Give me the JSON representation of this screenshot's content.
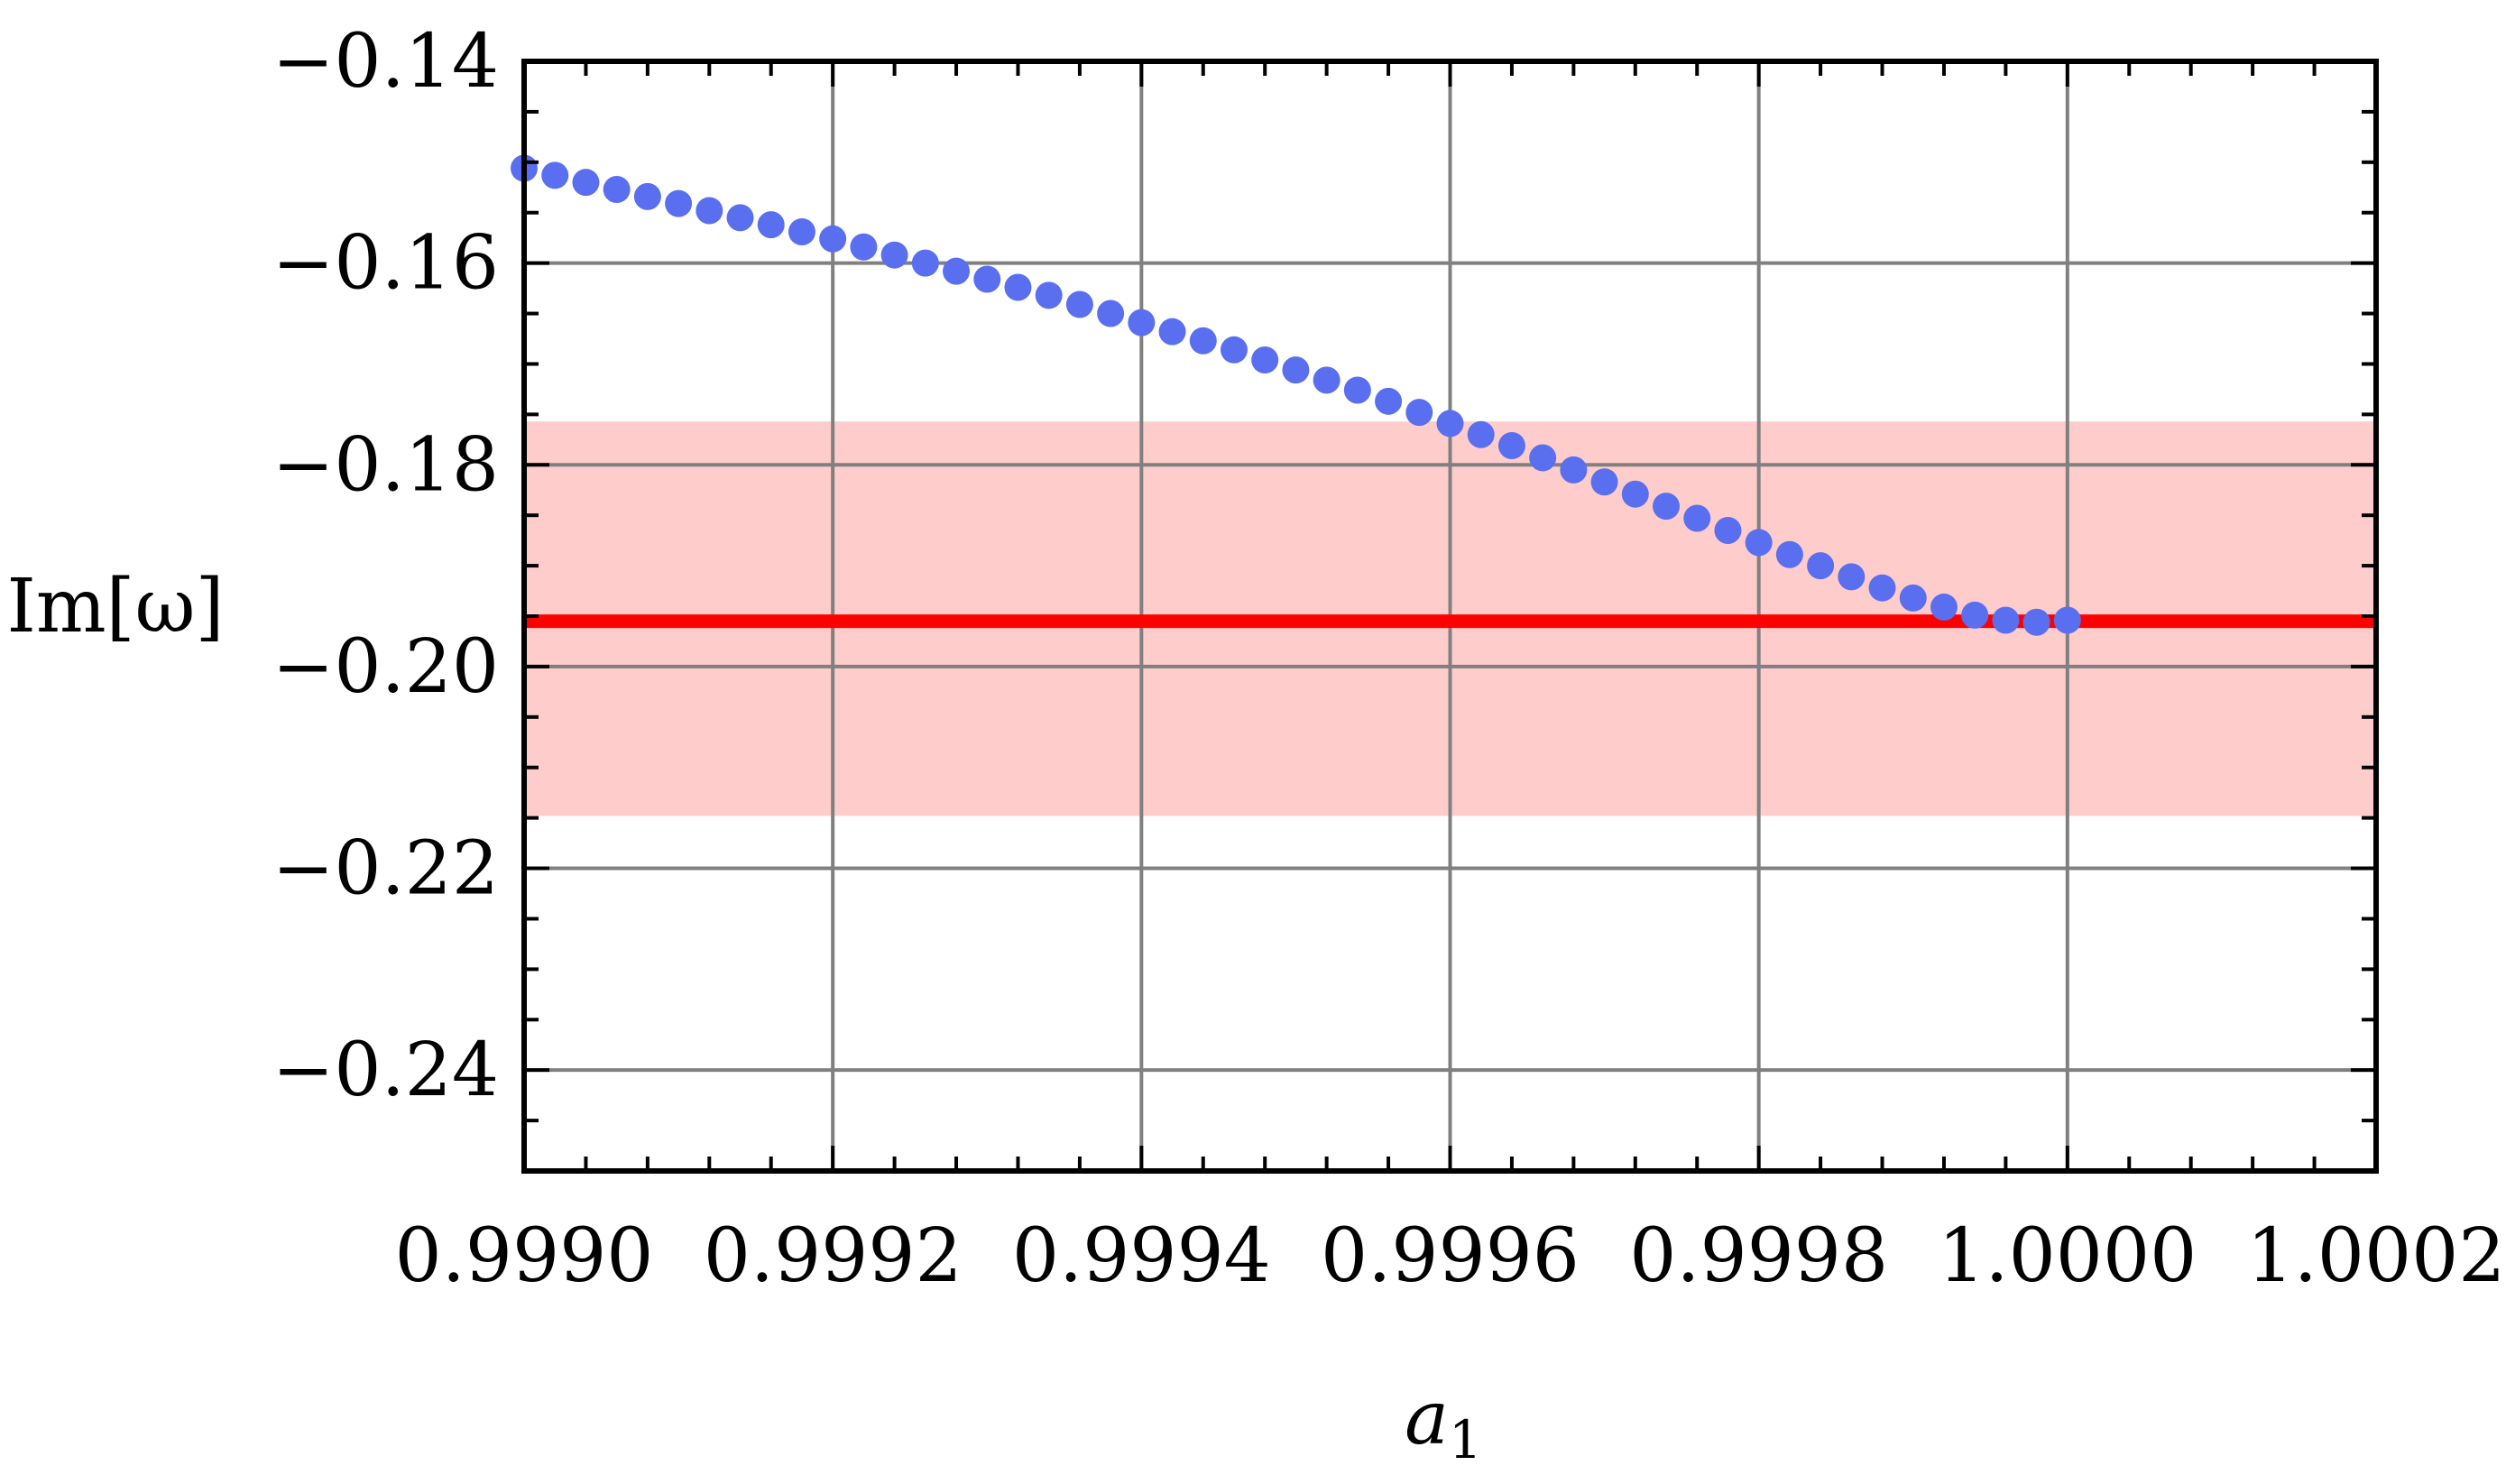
{
  "chart_data": {
    "type": "scatter",
    "xlabel": "a",
    "xlabel_subscript": "1",
    "ylabel": "Im[ω]",
    "xlim": [
      0.999,
      1.0002
    ],
    "ylim": [
      -0.25,
      -0.14
    ],
    "x_ticks": [
      0.999,
      0.9992,
      0.9994,
      0.9996,
      0.9998,
      1.0,
      1.0002
    ],
    "x_tick_labels": [
      "0.9990",
      "0.9992",
      "0.9994",
      "0.9996",
      "0.9998",
      "1.0000",
      "1.0002"
    ],
    "y_ticks": [
      -0.24,
      -0.22,
      -0.2,
      -0.18,
      -0.16,
      -0.14
    ],
    "y_tick_labels": [
      "−0.24",
      "−0.22",
      "−0.20",
      "−0.18",
      "−0.16",
      "−0.14"
    ],
    "grid": true,
    "reference_line": {
      "y": -0.1955,
      "color": "#ff0000"
    },
    "reference_band": {
      "y_min": -0.2148,
      "y_max": -0.1757,
      "color": "#ffcccc"
    },
    "series": [
      {
        "marker_color": "#5a6ff0",
        "points": [
          [
            0.999,
            -0.1506
          ],
          [
            0.99902,
            -0.1513
          ],
          [
            0.99904,
            -0.152
          ],
          [
            0.99906,
            -0.1527
          ],
          [
            0.99908,
            -0.1534
          ],
          [
            0.9991,
            -0.1541
          ],
          [
            0.99912,
            -0.1548
          ],
          [
            0.99914,
            -0.1555
          ],
          [
            0.99916,
            -0.1562
          ],
          [
            0.99918,
            -0.1569
          ],
          [
            0.9992,
            -0.1576
          ],
          [
            0.99922,
            -0.1584
          ],
          [
            0.99924,
            -0.1592
          ],
          [
            0.99926,
            -0.16
          ],
          [
            0.99928,
            -0.1608
          ],
          [
            0.9993,
            -0.1616
          ],
          [
            0.99932,
            -0.1624
          ],
          [
            0.99934,
            -0.1632
          ],
          [
            0.99936,
            -0.1641
          ],
          [
            0.99938,
            -0.165
          ],
          [
            0.9994,
            -0.1659
          ],
          [
            0.99942,
            -0.1668
          ],
          [
            0.99944,
            -0.1677
          ],
          [
            0.99946,
            -0.1686
          ],
          [
            0.99948,
            -0.1696
          ],
          [
            0.9995,
            -0.1706
          ],
          [
            0.99952,
            -0.1716
          ],
          [
            0.99954,
            -0.1726
          ],
          [
            0.99956,
            -0.1737
          ],
          [
            0.99958,
            -0.1748
          ],
          [
            0.9996,
            -0.1759
          ],
          [
            0.99962,
            -0.177
          ],
          [
            0.99964,
            -0.1781
          ],
          [
            0.99966,
            -0.1793
          ],
          [
            0.99968,
            -0.1805
          ],
          [
            0.9997,
            -0.1817
          ],
          [
            0.99972,
            -0.1829
          ],
          [
            0.99974,
            -0.1841
          ],
          [
            0.99976,
            -0.1853
          ],
          [
            0.99978,
            -0.1865
          ],
          [
            0.9998,
            -0.1877
          ],
          [
            0.99982,
            -0.1889
          ],
          [
            0.99984,
            -0.19
          ],
          [
            0.99986,
            -0.1911
          ],
          [
            0.99988,
            -0.1922
          ],
          [
            0.9999,
            -0.1932
          ],
          [
            0.99992,
            -0.1941
          ],
          [
            0.99994,
            -0.1949
          ],
          [
            0.99996,
            -0.1954
          ],
          [
            0.99998,
            -0.1956
          ],
          [
            1.0,
            -0.1954
          ]
        ]
      }
    ]
  }
}
